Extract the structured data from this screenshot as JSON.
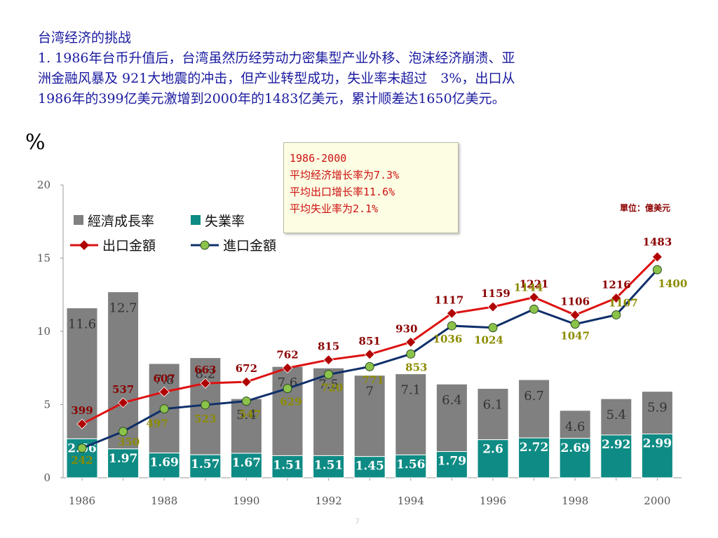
{
  "heading": {
    "title": "台湾经济的挑战",
    "line1": "1. 1986年台币升值后，台湾虽然历经劳动力密集型产业外移、泡沫经济崩溃、亚",
    "line2": "洲金融风暴及 921大地震的冲击，但产业转型成功，失业率未超过　3%，出口从",
    "line3": "1986年的399亿美元激增到2000年的1483亿美元，累计顺差达1650亿美元。"
  },
  "y_axis_unit": "%",
  "info_box": {
    "line1": "1986-2000",
    "line2": "平均经济增长率为7.3%",
    "line3": "平均出口增长率11.6%",
    "line4": "平均失业率为2.1%"
  },
  "unit_note": "單位：億美元",
  "page_number": "7",
  "colors": {
    "growth": "#808080",
    "unemployment": "#0e8b84",
    "export": "#dd1111",
    "import": "#0f2f6a",
    "export_marker": "#b00000",
    "import_marker": "#8bc34a"
  },
  "chart_data": {
    "type": "bar",
    "stacked": true,
    "categories": [
      "1986",
      "1987",
      "1988",
      "1989",
      "1990",
      "1991",
      "1992",
      "1993",
      "1994",
      "1995",
      "1996",
      "1997",
      "1998",
      "1999",
      "2000"
    ],
    "x_tick_labels": [
      "1986",
      "1988",
      "1990",
      "1992",
      "1994",
      "1996",
      "1998",
      "2000"
    ],
    "y_ticks": [
      "0",
      "5",
      "10",
      "15",
      "20"
    ],
    "ylim": [
      0,
      20
    ],
    "grid": false,
    "series": [
      {
        "name": "經濟成長率",
        "type": "bar",
        "values": [
          11.6,
          12.7,
          7.8,
          8.2,
          5.4,
          7.6,
          7.5,
          7,
          7.1,
          6.4,
          6.1,
          6.7,
          4.6,
          5.4,
          5.9
        ]
      },
      {
        "name": "失業率",
        "type": "bar",
        "values": [
          2.66,
          1.97,
          1.69,
          1.57,
          1.67,
          1.51,
          1.51,
          1.45,
          1.56,
          1.79,
          2.6,
          2.72,
          2.69,
          2.92,
          2.99
        ]
      },
      {
        "name": "出口金額",
        "type": "line",
        "values": [
          399,
          537,
          607,
          663,
          672,
          762,
          815,
          851,
          930,
          1117,
          1159,
          1221,
          1106,
          1216,
          1483
        ]
      },
      {
        "name": "進口金額",
        "type": "line",
        "values": [
          242,
          350,
          497,
          523,
          547,
          629,
          720,
          771,
          853,
          1036,
          1024,
          1144,
          1047,
          1107,
          1400
        ]
      }
    ],
    "legend_placement": "top-left"
  }
}
